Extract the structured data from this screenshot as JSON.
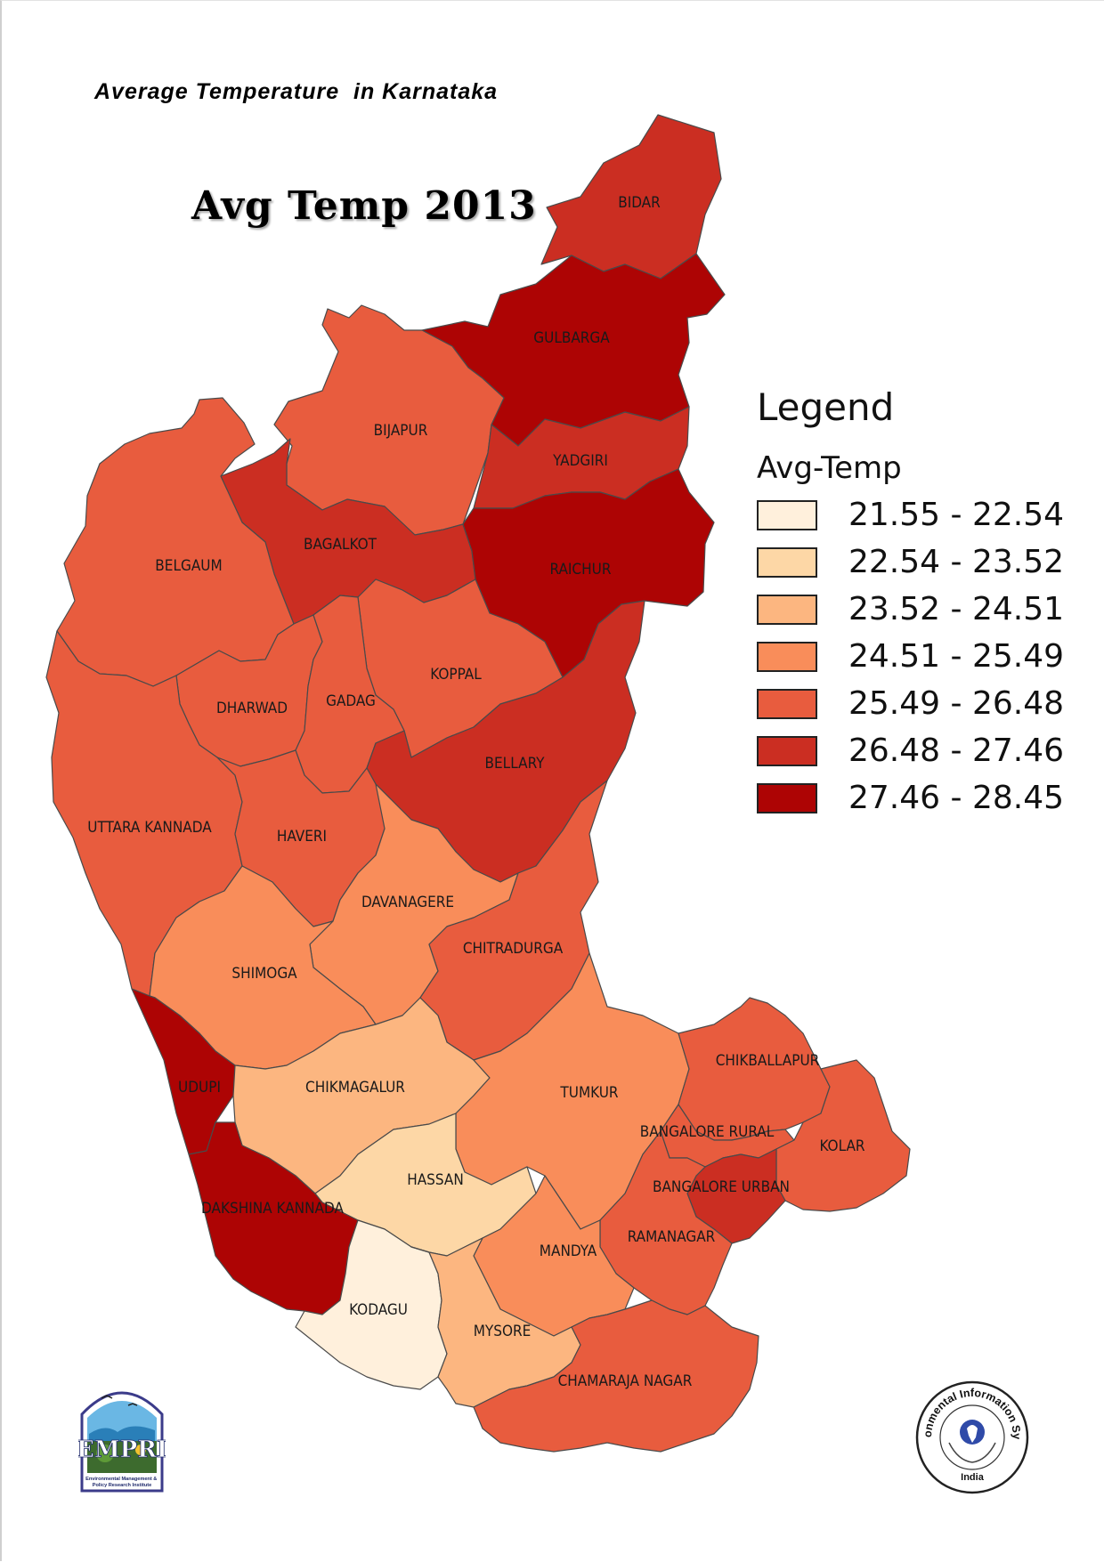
{
  "header": {
    "title": "Average Temperature  in Karnataka"
  },
  "map": {
    "title": "Avg Temp 2013"
  },
  "legend": {
    "title": "Legend",
    "field": "Avg-Temp",
    "classes": [
      {
        "label": "21.55 - 22.54",
        "color": "#fff0dc"
      },
      {
        "label": "22.54 - 23.52",
        "color": "#fdd7a6"
      },
      {
        "label": "23.52 - 24.51",
        "color": "#fcb680"
      },
      {
        "label": "24.51 - 25.49",
        "color": "#f98d5a"
      },
      {
        "label": "25.49 - 26.48",
        "color": "#e85c3e"
      },
      {
        "label": "26.48 - 27.46",
        "color": "#cb2e22"
      },
      {
        "label": "27.46 - 28.45",
        "color": "#ad0404"
      }
    ]
  },
  "districts": [
    {
      "name": "BIDAR",
      "class": 5
    },
    {
      "name": "GULBARGA",
      "class": 6
    },
    {
      "name": "BIJAPUR",
      "class": 4
    },
    {
      "name": "YADGIRI",
      "class": 5
    },
    {
      "name": "BAGALKOT",
      "class": 5
    },
    {
      "name": "RAICHUR",
      "class": 6
    },
    {
      "name": "BELGAUM",
      "class": 4
    },
    {
      "name": "KOPPAL",
      "class": 4
    },
    {
      "name": "DHARWAD",
      "class": 4
    },
    {
      "name": "GADAG",
      "class": 4
    },
    {
      "name": "BELLARY",
      "class": 5
    },
    {
      "name": "UTTARA KANNADA",
      "class": 4
    },
    {
      "name": "HAVERI",
      "class": 4
    },
    {
      "name": "DAVANAGERE",
      "class": 3
    },
    {
      "name": "CHITRADURGA",
      "class": 4
    },
    {
      "name": "SHIMOGA",
      "class": 3
    },
    {
      "name": "UDUPI",
      "class": 6
    },
    {
      "name": "CHIKMAGALUR",
      "class": 2
    },
    {
      "name": "TUMKUR",
      "class": 3
    },
    {
      "name": "CHIKBALLAPUR",
      "class": 4
    },
    {
      "name": "BANGALORE RURAL",
      "class": 4
    },
    {
      "name": "KOLAR",
      "class": 4
    },
    {
      "name": "HASSAN",
      "class": 1
    },
    {
      "name": "BANGALORE URBAN",
      "class": 5
    },
    {
      "name": "DAKSHINA KANNADA",
      "class": 6
    },
    {
      "name": "RAMANAGAR",
      "class": 4
    },
    {
      "name": "MANDYA",
      "class": 3
    },
    {
      "name": "KODAGU",
      "class": 0
    },
    {
      "name": "MYSORE",
      "class": 2
    },
    {
      "name": "CHAMARAJA NAGAR",
      "class": 4
    }
  ],
  "logos": {
    "empri": {
      "acronym": "EMPRI",
      "caption": "Environmental Management & Policy Research Institute"
    },
    "eis": {
      "ring_text": "Environmental Information System",
      "country": "India"
    }
  }
}
